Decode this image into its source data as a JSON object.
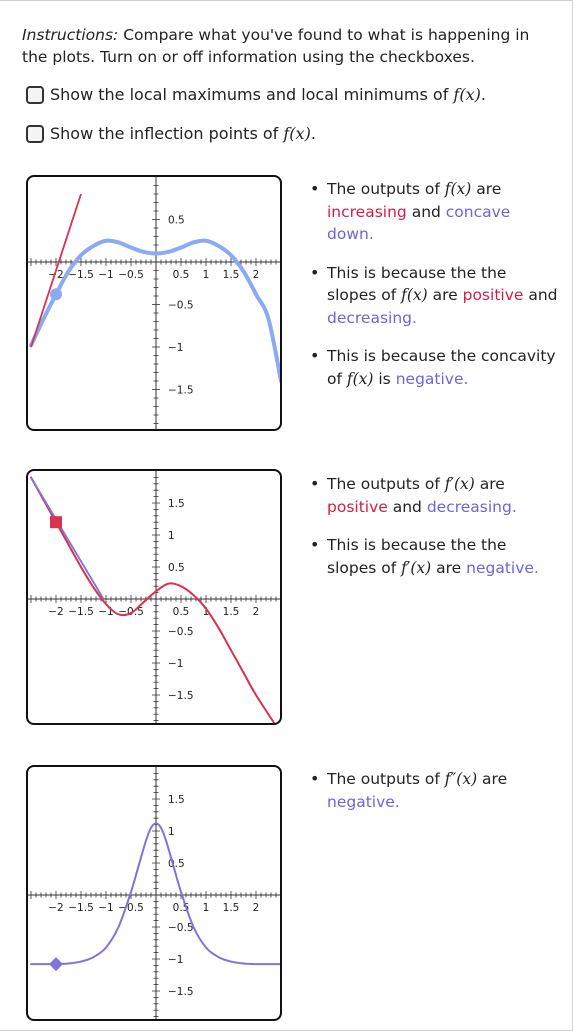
{
  "colors": {
    "red": "#d8324e",
    "light_blue": "#8aaaf3",
    "purple": "#8073db",
    "axis": "#333333",
    "accent_text_red": "#d01f43",
    "accent_text_blue": "#6e64d8"
  },
  "instructions": {
    "lead": "Instructions:",
    "text": " Compare what you've found to what is happening in the plots. Turn on or off information using the checkboxes."
  },
  "checkboxes": [
    {
      "label_prefix": "Show the local maximums and local minimums of ",
      "math": "f(x)",
      "label_suffix": ".",
      "checked": false
    },
    {
      "label_prefix": "Show the inflection points of ",
      "math": "f(x)",
      "label_suffix": ".",
      "checked": false
    }
  ],
  "sections": [
    {
      "bullets": [
        {
          "parts": [
            {
              "t": "The outputs of "
            },
            {
              "m": "f(x)"
            },
            {
              "t": " are "
            },
            {
              "t": "increasing",
              "c": "red"
            },
            {
              "t": " and "
            },
            {
              "t": "concave down.",
              "c": "blue"
            }
          ]
        },
        {
          "parts": [
            {
              "t": "This is because the the slopes of "
            },
            {
              "m": "f(x)"
            },
            {
              "t": " are "
            },
            {
              "t": "positive",
              "c": "red"
            },
            {
              "t": " and "
            },
            {
              "t": "decreasing.",
              "c": "blue"
            }
          ]
        },
        {
          "parts": [
            {
              "t": "This is because the concavity of "
            },
            {
              "m": "f(x)"
            },
            {
              "t": " is "
            },
            {
              "t": "negative.",
              "c": "blue"
            }
          ]
        }
      ]
    },
    {
      "bullets": [
        {
          "parts": [
            {
              "t": "The outputs of "
            },
            {
              "m": "f′(x)"
            },
            {
              "t": " are "
            },
            {
              "t": "positive",
              "c": "red"
            },
            {
              "t": " and "
            },
            {
              "t": "decreasing.",
              "c": "blue"
            }
          ]
        },
        {
          "parts": [
            {
              "t": "This is because the the slopes of "
            },
            {
              "m": "f′(x)"
            },
            {
              "t": " are "
            },
            {
              "t": "negative.",
              "c": "blue"
            }
          ]
        }
      ]
    },
    {
      "bullets": [
        {
          "parts": [
            {
              "t": "The outputs of "
            },
            {
              "m": "f″(x)"
            },
            {
              "t": " are "
            },
            {
              "t": "negative.",
              "c": "blue"
            }
          ]
        }
      ]
    }
  ],
  "chart_data": [
    {
      "type": "line",
      "xlim": [
        -2.5,
        2.5
      ],
      "ylim": [
        -1.8,
        0.8
      ],
      "x_ticks": [
        -2,
        -1.5,
        -1,
        -0.5,
        0.5,
        1,
        1.5,
        2
      ],
      "x_tick_labels": [
        "−2",
        "−1.5",
        "−1",
        "−0.5",
        "0.5",
        "1",
        "1.5",
        "2"
      ],
      "y_ticks": [
        0.5,
        -0.5,
        -1,
        -1.5
      ],
      "y_tick_labels": [
        "0.5",
        "−0.5",
        "−1",
        "−1.5"
      ],
      "series": [
        {
          "kind": "curve",
          "color": "#8aaaf3",
          "x": [
            -2.5,
            -2.25,
            -2.0,
            -1.75,
            -1.5,
            -1.25,
            -1.0,
            -0.75,
            -0.5,
            -0.25,
            0.0,
            0.25,
            0.5,
            0.75,
            1.0,
            1.25,
            1.5,
            1.75,
            2.0,
            2.25,
            2.5
          ],
          "y": [
            -0.98,
            -0.67,
            -0.38,
            -0.11,
            0.08,
            0.19,
            0.25,
            0.23,
            0.17,
            0.12,
            0.1,
            0.12,
            0.17,
            0.23,
            0.25,
            0.19,
            0.08,
            -0.11,
            -0.38,
            -0.67,
            -1.4
          ]
        },
        {
          "kind": "tangent-line",
          "color": "#d8324e",
          "x": [
            -2.5,
            -1.5
          ],
          "y": [
            -1.0,
            0.8
          ]
        }
      ],
      "marker": {
        "shape": "circle",
        "color": "#8aaaf3",
        "x": -2.0,
        "y": -0.38
      }
    },
    {
      "type": "line",
      "xlim": [
        -2.5,
        2.5
      ],
      "ylim": [
        -1.8,
        1.9
      ],
      "x_ticks": [
        -2,
        -1.5,
        -1,
        -0.5,
        0.5,
        1,
        1.5,
        2
      ],
      "x_tick_labels": [
        "−2",
        "−1.5",
        "−1",
        "−0.5",
        "0.5",
        "1",
        "1.5",
        "2"
      ],
      "y_ticks": [
        1.5,
        1,
        0.5,
        -0.5,
        -1,
        -1.5
      ],
      "y_tick_labels": [
        "1.5",
        "1",
        "0.5",
        "−0.5",
        "−1",
        "−1.5"
      ],
      "series": [
        {
          "kind": "curve",
          "color": "#d8324e",
          "x": [
            -2.5,
            -2.25,
            -2.0,
            -1.75,
            -1.5,
            -1.25,
            -1.0,
            -0.75,
            -0.5,
            -0.25,
            0.0,
            0.25,
            0.5,
            0.75,
            1.0,
            1.25,
            1.5,
            1.75,
            2.0,
            2.5
          ],
          "y": [
            1.9,
            1.55,
            1.2,
            0.85,
            0.5,
            0.18,
            -0.08,
            -0.24,
            -0.22,
            -0.05,
            0.12,
            0.24,
            0.2,
            0.06,
            -0.15,
            -0.45,
            -0.8,
            -1.15,
            -1.5,
            -2.1
          ]
        },
        {
          "kind": "tangent-line",
          "color": "#8073db",
          "x": [
            -2.5,
            -1.05
          ],
          "y": [
            1.9,
            0.0
          ]
        }
      ],
      "marker": {
        "shape": "square",
        "color": "#d8324e",
        "x": -2.0,
        "y": 1.2
      }
    },
    {
      "type": "line",
      "xlim": [
        -2.5,
        2.5
      ],
      "ylim": [
        -1.8,
        1.9
      ],
      "x_ticks": [
        -2,
        -1.5,
        -1,
        -0.5,
        0.5,
        1,
        1.5,
        2
      ],
      "x_tick_labels": [
        "−2",
        "−1.5",
        "−1",
        "−0.5",
        "0.5",
        "1",
        "1.5",
        "2"
      ],
      "y_ticks": [
        1.5,
        1,
        0.5,
        -0.5,
        -1,
        -1.5
      ],
      "y_tick_labels": [
        "1.5",
        "1",
        "0.5",
        "−0.5",
        "−1",
        "−1.5"
      ],
      "series": [
        {
          "kind": "curve",
          "color": "#8073db",
          "x": [
            -2.5,
            -2.0,
            -1.75,
            -1.5,
            -1.25,
            -1.0,
            -0.75,
            -0.5,
            -0.35,
            -0.2,
            -0.1,
            0.0,
            0.1,
            0.2,
            0.35,
            0.5,
            0.75,
            1.0,
            1.25,
            1.5,
            1.75,
            2.0,
            2.5
          ],
          "y": [
            -1.08,
            -1.08,
            -1.07,
            -1.04,
            -0.97,
            -0.82,
            -0.5,
            0.05,
            0.45,
            0.85,
            1.05,
            1.12,
            1.05,
            0.85,
            0.45,
            0.05,
            -0.5,
            -0.82,
            -0.97,
            -1.04,
            -1.07,
            -1.08,
            -1.08
          ]
        }
      ],
      "marker": {
        "shape": "diamond",
        "color": "#8073db",
        "x": -2.0,
        "y": -1.08
      }
    }
  ]
}
